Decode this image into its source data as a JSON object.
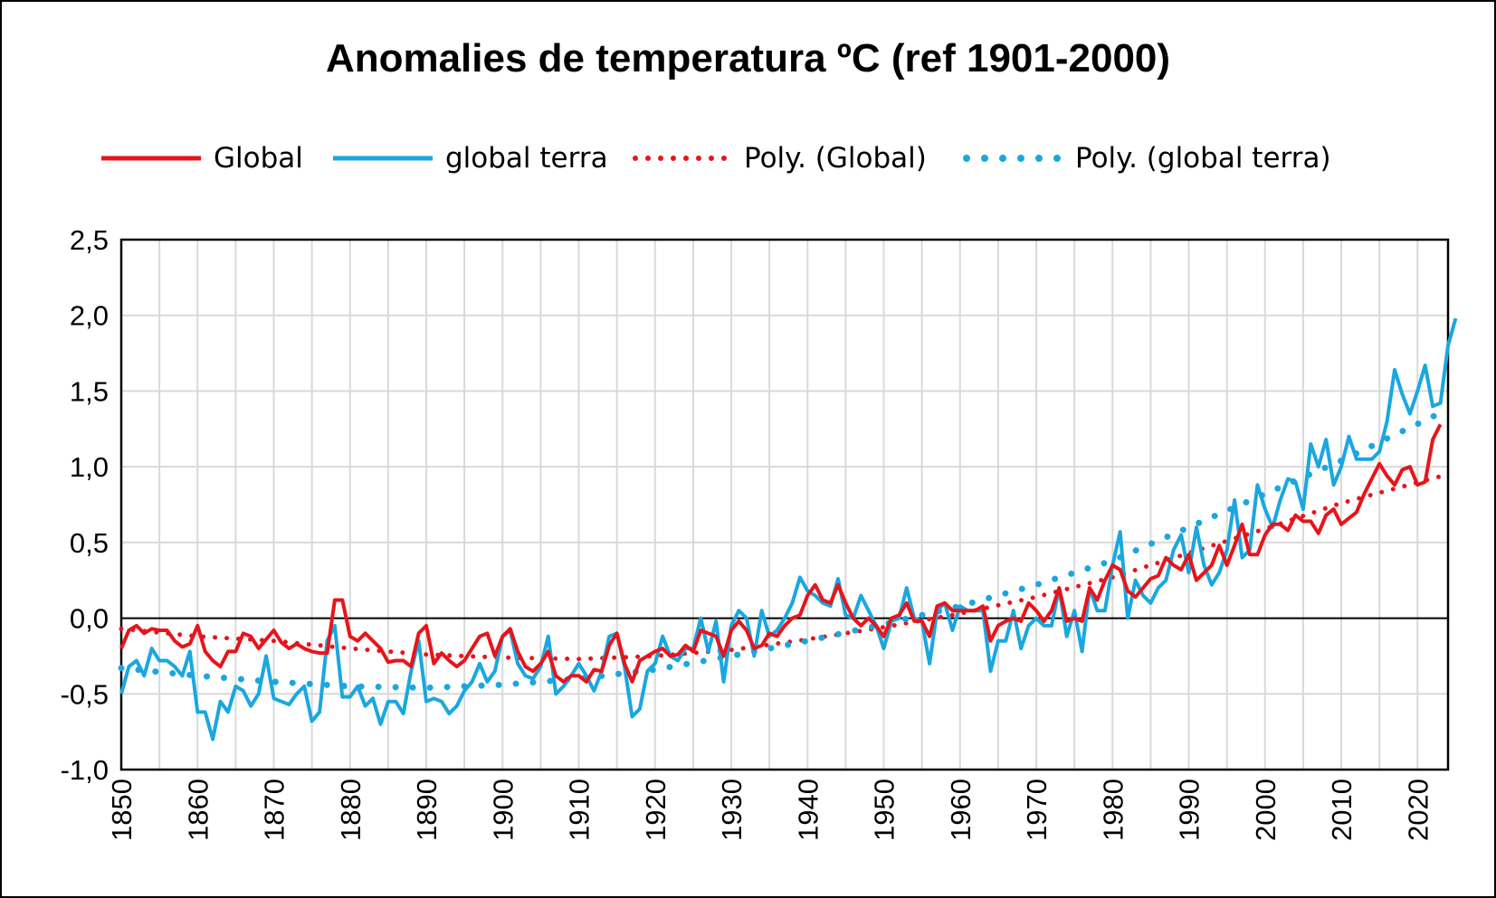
{
  "chart_data": {
    "type": "line",
    "title": "Anomalies de temperatura ºC (ref 1901-2000)",
    "xlabel": "",
    "ylabel": "",
    "xlim": [
      1850,
      2024
    ],
    "ylim": [
      -1.0,
      2.5
    ],
    "y_ticks": [
      "2,5",
      "2,0",
      "1,5",
      "1,0",
      "0,5",
      "0,0",
      "-0,5",
      "-1,0"
    ],
    "x_ticks": [
      "1850",
      "1860",
      "1870",
      "1880",
      "1890",
      "1900",
      "1910",
      "1920",
      "1930",
      "1940",
      "1950",
      "1960",
      "1970",
      "1980",
      "1990",
      "2000",
      "2010",
      "2020"
    ],
    "grid": true,
    "legend_position": "top",
    "series": [
      {
        "name": "Global",
        "style": "solid",
        "color": "#e8141b",
        "x_start": 1850,
        "values": [
          -0.2,
          -0.08,
          -0.05,
          -0.1,
          -0.07,
          -0.08,
          -0.08,
          -0.15,
          -0.19,
          -0.17,
          -0.05,
          -0.22,
          -0.28,
          -0.32,
          -0.22,
          -0.22,
          -0.1,
          -0.12,
          -0.2,
          -0.14,
          -0.08,
          -0.16,
          -0.2,
          -0.17,
          -0.2,
          -0.22,
          -0.23,
          -0.23,
          0.12,
          0.12,
          -0.12,
          -0.15,
          -0.1,
          -0.15,
          -0.2,
          -0.29,
          -0.28,
          -0.28,
          -0.32,
          -0.1,
          -0.05,
          -0.3,
          -0.23,
          -0.28,
          -0.32,
          -0.28,
          -0.2,
          -0.12,
          -0.1,
          -0.25,
          -0.12,
          -0.07,
          -0.22,
          -0.32,
          -0.35,
          -0.3,
          -0.22,
          -0.38,
          -0.42,
          -0.38,
          -0.38,
          -0.42,
          -0.34,
          -0.35,
          -0.18,
          -0.1,
          -0.3,
          -0.42,
          -0.28,
          -0.25,
          -0.22,
          -0.2,
          -0.25,
          -0.24,
          -0.18,
          -0.22,
          -0.08,
          -0.1,
          -0.12,
          -0.25,
          -0.08,
          -0.02,
          -0.08,
          -0.2,
          -0.18,
          -0.1,
          -0.12,
          -0.05,
          0.0,
          0.02,
          0.15,
          0.22,
          0.12,
          0.1,
          0.22,
          0.1,
          0.0,
          -0.05,
          0.0,
          -0.05,
          -0.12,
          0.0,
          0.02,
          0.1,
          -0.02,
          -0.02,
          -0.12,
          0.08,
          0.1,
          0.05,
          0.05,
          0.05,
          0.05,
          0.08,
          -0.15,
          -0.05,
          -0.02,
          0.0,
          -0.02,
          0.1,
          0.05,
          -0.02,
          0.05,
          0.2,
          -0.02,
          0.0,
          -0.02,
          0.2,
          0.12,
          0.25,
          0.35,
          0.32,
          0.18,
          0.14,
          0.2,
          0.26,
          0.28,
          0.4,
          0.35,
          0.32,
          0.42,
          0.25,
          0.3,
          0.35,
          0.48,
          0.35,
          0.48,
          0.62,
          0.42,
          0.42,
          0.55,
          0.62,
          0.62,
          0.58,
          0.68,
          0.64,
          0.64,
          0.56,
          0.68,
          0.72,
          0.62,
          0.66,
          0.7,
          0.82,
          0.92,
          1.02,
          0.94,
          0.88,
          0.98,
          1.0,
          0.88,
          0.9,
          1.18,
          1.28
        ]
      },
      {
        "name": "global terra",
        "style": "solid",
        "color": "#1aa7e0",
        "x_start": 1850,
        "values": [
          -0.5,
          -0.32,
          -0.28,
          -0.38,
          -0.2,
          -0.28,
          -0.28,
          -0.32,
          -0.38,
          -0.22,
          -0.62,
          -0.62,
          -0.8,
          -0.55,
          -0.62,
          -0.45,
          -0.48,
          -0.58,
          -0.5,
          -0.25,
          -0.53,
          -0.55,
          -0.57,
          -0.5,
          -0.45,
          -0.68,
          -0.62,
          -0.15,
          -0.05,
          -0.52,
          -0.52,
          -0.45,
          -0.58,
          -0.53,
          -0.7,
          -0.55,
          -0.55,
          -0.63,
          -0.35,
          -0.15,
          -0.55,
          -0.53,
          -0.55,
          -0.63,
          -0.58,
          -0.48,
          -0.42,
          -0.3,
          -0.42,
          -0.35,
          -0.12,
          -0.08,
          -0.3,
          -0.38,
          -0.4,
          -0.32,
          -0.12,
          -0.5,
          -0.45,
          -0.38,
          -0.3,
          -0.38,
          -0.48,
          -0.35,
          -0.12,
          -0.1,
          -0.32,
          -0.65,
          -0.6,
          -0.35,
          -0.3,
          -0.12,
          -0.25,
          -0.28,
          -0.2,
          -0.2,
          0.0,
          -0.22,
          -0.02,
          -0.42,
          -0.05,
          0.05,
          0.0,
          -0.25,
          0.05,
          -0.12,
          -0.08,
          0.0,
          0.1,
          0.27,
          0.18,
          0.15,
          0.1,
          0.08,
          0.26,
          0.02,
          0.0,
          0.15,
          0.05,
          -0.05,
          -0.2,
          -0.02,
          0.0,
          0.2,
          0.0,
          -0.02,
          -0.3,
          0.05,
          0.1,
          -0.08,
          0.08,
          0.05,
          0.05,
          0.05,
          -0.35,
          -0.15,
          -0.15,
          0.05,
          -0.2,
          -0.05,
          0.0,
          -0.05,
          -0.05,
          0.2,
          -0.12,
          0.05,
          -0.22,
          0.2,
          0.05,
          0.05,
          0.35,
          0.57,
          0.0,
          0.25,
          0.15,
          0.1,
          0.2,
          0.25,
          0.45,
          0.55,
          0.3,
          0.6,
          0.35,
          0.22,
          0.3,
          0.45,
          0.78,
          0.4,
          0.45,
          0.88,
          0.72,
          0.6,
          0.78,
          0.92,
          0.9,
          0.72,
          1.15,
          1.0,
          1.18,
          0.88,
          1.0,
          1.2,
          1.05,
          1.05,
          1.05,
          1.1,
          1.3,
          1.64,
          1.48,
          1.35,
          1.5,
          1.67,
          1.4,
          1.42,
          1.8,
          1.98
        ]
      },
      {
        "name": "Poly. (Global)",
        "style": "dotted",
        "color": "#e8141b",
        "trend_of": "Global",
        "x_start": 1850,
        "trend_anchor_values": {
          "1850": -0.07,
          "1860": -0.12,
          "1870": -0.15,
          "1880": -0.2,
          "1890": -0.24,
          "1900": -0.26,
          "1910": -0.27,
          "1920": -0.25,
          "1930": -0.21,
          "1940": -0.14,
          "1950": -0.06,
          "1960": 0.03,
          "1970": 0.14,
          "1980": 0.27,
          "1990": 0.43,
          "2000": 0.59,
          "2010": 0.76,
          "2024": 0.95
        }
      },
      {
        "name": "Poly. (global terra)",
        "style": "dotted",
        "color": "#1aa7e0",
        "trend_of": "global terra",
        "x_start": 1850,
        "trend_anchor_values": {
          "1850": -0.33,
          "1860": -0.38,
          "1870": -0.42,
          "1880": -0.45,
          "1890": -0.46,
          "1900": -0.44,
          "1910": -0.4,
          "1920": -0.34,
          "1930": -0.25,
          "1940": -0.15,
          "1950": -0.04,
          "1960": 0.08,
          "1970": 0.22,
          "1980": 0.38,
          "1990": 0.6,
          "2000": 0.82,
          "2010": 1.04,
          "2024": 1.38
        }
      }
    ],
    "reference_line": {
      "y": 0.0,
      "color": "#000000"
    }
  }
}
